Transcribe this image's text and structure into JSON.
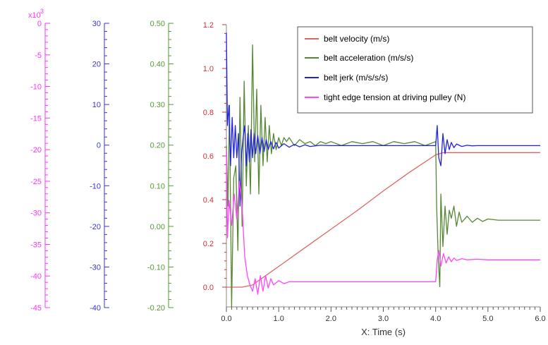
{
  "chart_data": {
    "type": "line",
    "xlabel": "X: Time (s)",
    "xlim": [
      0,
      6
    ],
    "x_ticks": [
      "0.0",
      "1.0",
      "2.0",
      "3.0",
      "4.0",
      "5.0",
      "6.0"
    ],
    "axes": [
      {
        "id": "tension",
        "color": "#ff33ff",
        "range": [
          -45000,
          0
        ],
        "multiplier_label": "x10",
        "multiplier_exp": "3",
        "ticks": [
          "0",
          "-5",
          "-10",
          "-15",
          "-20",
          "-25",
          "-30",
          "-35",
          "-40",
          "-45"
        ]
      },
      {
        "id": "jerk",
        "color": "#3333dd",
        "range": [
          -40,
          30
        ],
        "ticks": [
          "30",
          "20",
          "10",
          "0",
          "-10",
          "-20",
          "-30",
          "-40"
        ]
      },
      {
        "id": "acceleration",
        "color": "#559933",
        "range": [
          -0.2,
          0.5
        ],
        "ticks": [
          "0.50",
          "0.40",
          "0.30",
          "0.20",
          "0.10",
          "0.00",
          "-0.10",
          "-0.20"
        ]
      },
      {
        "id": "velocity",
        "color": "#cc3333",
        "range": [
          -0.1,
          1.2
        ],
        "ticks": [
          "1.2",
          "1.0",
          "0.8",
          "0.6",
          "0.4",
          "0.2",
          "0.0"
        ]
      }
    ],
    "legend_position": "top-right",
    "series": [
      {
        "name": "belt velocity (m/s)",
        "color": "#dd6666",
        "axis": "velocity",
        "x": [
          0,
          0.3,
          0.5,
          1.0,
          1.5,
          2.0,
          2.5,
          3.0,
          3.5,
          4.0,
          4.15,
          5.0,
          6.0
        ],
        "y": [
          0.0,
          0.0,
          0.01,
          0.095,
          0.18,
          0.265,
          0.35,
          0.44,
          0.525,
          0.605,
          0.615,
          0.615,
          0.615
        ]
      },
      {
        "name": "belt acceleration (m/s/s)",
        "color": "#558833",
        "axis": "acceleration",
        "x": [
          0,
          0.03,
          0.06,
          0.1,
          0.14,
          0.18,
          0.22,
          0.26,
          0.3,
          0.34,
          0.38,
          0.42,
          0.46,
          0.5,
          0.54,
          0.58,
          0.62,
          0.66,
          0.7,
          0.74,
          0.78,
          0.82,
          0.86,
          0.9,
          0.95,
          1.0,
          1.05,
          1.1,
          1.15,
          1.2,
          1.3,
          1.4,
          1.5,
          1.6,
          1.7,
          1.8,
          1.9,
          2.0,
          2.2,
          2.4,
          2.6,
          2.8,
          3.0,
          3.2,
          3.4,
          3.6,
          3.8,
          4.0,
          4.02,
          4.05,
          4.08,
          4.1,
          4.14,
          4.18,
          4.22,
          4.26,
          4.3,
          4.35,
          4.4,
          4.45,
          4.5,
          4.6,
          4.7,
          4.8,
          4.9,
          5.0,
          5.2,
          5.5,
          6.0
        ],
        "y": [
          0.2,
          0.05,
          0.3,
          -0.2,
          0.12,
          0.15,
          -0.06,
          0.32,
          0.0,
          0.36,
          0.1,
          0.25,
          0.08,
          0.45,
          0.16,
          0.34,
          0.08,
          0.3,
          0.15,
          0.27,
          0.16,
          0.25,
          0.18,
          0.23,
          0.19,
          0.22,
          0.2,
          0.22,
          0.21,
          0.22,
          0.2,
          0.215,
          0.205,
          0.21,
          0.2,
          0.21,
          0.205,
          0.21,
          0.2,
          0.21,
          0.205,
          0.21,
          0.2,
          0.21,
          0.205,
          0.21,
          0.2,
          0.21,
          0.05,
          -0.08,
          -0.15,
          0.08,
          -0.05,
          0.05,
          -0.02,
          0.04,
          0.02,
          0.05,
          0.0,
          0.035,
          0.01,
          0.025,
          0.01,
          0.02,
          0.012,
          0.018,
          0.015,
          0.015,
          0.015
        ]
      },
      {
        "name": "belt jerk (m/s/s/s)",
        "color": "#2222dd",
        "axis": "jerk",
        "x": [
          0,
          0.02,
          0.05,
          0.08,
          0.11,
          0.14,
          0.17,
          0.2,
          0.23,
          0.26,
          0.29,
          0.32,
          0.35,
          0.38,
          0.41,
          0.44,
          0.47,
          0.5,
          0.53,
          0.56,
          0.6,
          0.64,
          0.68,
          0.72,
          0.76,
          0.8,
          0.85,
          0.9,
          0.95,
          1.0,
          1.1,
          1.2,
          1.3,
          1.4,
          1.5,
          1.6,
          1.8,
          2.0,
          2.5,
          3.0,
          3.5,
          4.0,
          4.03,
          4.06,
          4.1,
          4.14,
          4.18,
          4.22,
          4.26,
          4.3,
          4.35,
          4.4,
          4.5,
          4.6,
          4.7,
          4.8,
          5.0,
          5.5,
          6.0
        ],
        "y": [
          28,
          5,
          10,
          -5,
          7,
          -3,
          5,
          -3,
          3,
          -15,
          -2,
          2,
          5,
          -5,
          3,
          -4,
          4,
          -3,
          3,
          -2,
          2.5,
          -2,
          2,
          -1.5,
          1.5,
          -1,
          1,
          -0.8,
          0.8,
          -0.6,
          0.5,
          -0.4,
          0.3,
          -0.3,
          0.2,
          -0.2,
          0.1,
          0,
          0,
          0,
          0,
          0,
          5,
          -3,
          -5,
          3,
          -2,
          1.5,
          -1,
          0.8,
          -0.5,
          0.4,
          -0.2,
          0.1,
          -0.05,
          0,
          0,
          0,
          0
        ]
      },
      {
        "name": "tight edge tension at driving pulley (N)",
        "color": "#ff44ff",
        "axis": "tension",
        "x": [
          0,
          0.02,
          0.05,
          0.1,
          0.15,
          0.2,
          0.25,
          0.3,
          0.35,
          0.4,
          0.45,
          0.5,
          0.55,
          0.6,
          0.65,
          0.7,
          0.75,
          0.8,
          0.85,
          0.9,
          1.0,
          1.1,
          1.2,
          1.5,
          2.0,
          2.5,
          3.0,
          3.5,
          4.0,
          4.03,
          4.06,
          4.1,
          4.15,
          4.2,
          4.25,
          4.3,
          4.35,
          4.4,
          4.5,
          4.6,
          4.8,
          5.0,
          5.5,
          6.0
        ],
        "y": [
          -20000,
          -34000,
          -28000,
          -32000,
          -27000,
          -31000,
          -25000,
          -29000,
          -37000,
          -40000,
          -41500,
          -42500,
          -40500,
          -43000,
          -40000,
          -42500,
          -40000,
          -42000,
          -40500,
          -41500,
          -40800,
          -41300,
          -41000,
          -41000,
          -41000,
          -41000,
          -41000,
          -41000,
          -41000,
          -37500,
          -36000,
          -38500,
          -36500,
          -38000,
          -37000,
          -37800,
          -37200,
          -37600,
          -37300,
          -37500,
          -37400,
          -37500,
          -37500,
          -37500
        ]
      }
    ]
  }
}
